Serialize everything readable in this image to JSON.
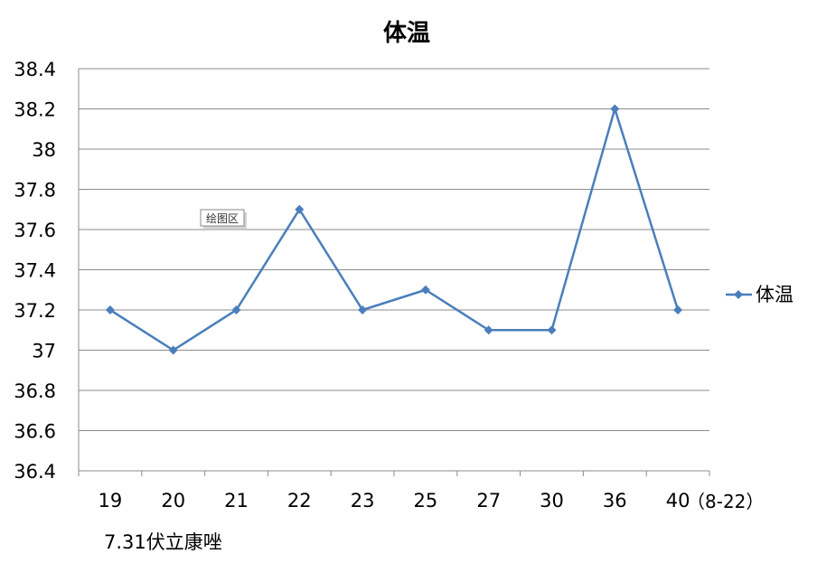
{
  "chart_data": {
    "type": "line",
    "title": "体温",
    "categories": [
      "19",
      "20",
      "21",
      "22",
      "23",
      "25",
      "27",
      "30",
      "36",
      "40"
    ],
    "series": [
      {
        "name": "体温",
        "values": [
          37.2,
          37.0,
          37.2,
          37.7,
          37.2,
          37.3,
          37.1,
          37.1,
          38.2,
          37.2
        ],
        "color": "#4a7ebb"
      }
    ],
    "ylim": [
      36.4,
      38.4
    ],
    "yticks": [
      "36.4",
      "36.6",
      "36.8",
      "37",
      "37.2",
      "37.4",
      "37.6",
      "37.8",
      "38",
      "38.2",
      "38.4"
    ],
    "x_unit_label": "（8-22）",
    "annotation": "7.31伏立康唑",
    "tooltip": "绘图区",
    "grid": true,
    "legend_position": "right",
    "marker": "diamond"
  }
}
